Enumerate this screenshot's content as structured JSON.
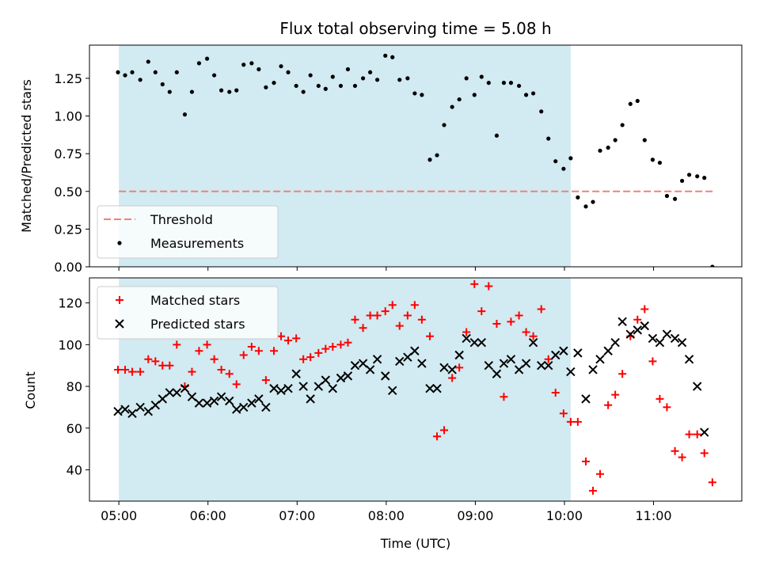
{
  "figure": {
    "title": "Flux total observing time = 5.08 h",
    "xlabel": "Time (UTC)"
  },
  "colors": {
    "shade": "#add8e6",
    "threshold": "#f08080",
    "measurement": "#000000",
    "matched": "#ff0000",
    "predicted": "#000000"
  },
  "chart_data": [
    {
      "type": "scatter",
      "ylabel": "Matched/Predicted stars",
      "xlim": [
        4.67,
        11.99
      ],
      "ylim": [
        0,
        1.47
      ],
      "x_unit": "hours UTC",
      "x_ticks": [
        5,
        6,
        7,
        8,
        9,
        10,
        11
      ],
      "x_tick_labels": [],
      "y_ticks": [
        0,
        0.25,
        0.5,
        0.75,
        1.0,
        1.25
      ],
      "y_tick_labels": [
        "0.00",
        "0.25",
        "0.50",
        "0.75",
        "1.00",
        "1.25"
      ],
      "shaded_interval": [
        5.0,
        10.07
      ],
      "threshold": {
        "name": "Threshold",
        "y": 0.5,
        "x_range": [
          5.0,
          11.67
        ],
        "style": "dashed"
      },
      "legend_position": "lower-left",
      "legend": [
        "Threshold",
        "Measurements"
      ],
      "series": [
        {
          "name": "Measurements",
          "marker": "dot",
          "x": [
            4.99,
            5.07,
            5.15,
            5.24,
            5.33,
            5.41,
            5.49,
            5.57,
            5.65,
            5.74,
            5.82,
            5.9,
            5.99,
            6.07,
            6.15,
            6.24,
            6.32,
            6.4,
            6.49,
            6.57,
            6.65,
            6.74,
            6.82,
            6.9,
            6.99,
            7.07,
            7.15,
            7.24,
            7.32,
            7.4,
            7.49,
            7.57,
            7.65,
            7.74,
            7.82,
            7.9,
            7.99,
            8.07,
            8.15,
            8.24,
            8.32,
            8.4,
            8.49,
            8.57,
            8.65,
            8.74,
            8.82,
            8.9,
            8.99,
            9.07,
            9.15,
            9.24,
            9.32,
            9.4,
            9.49,
            9.57,
            9.65,
            9.74,
            9.82,
            9.9,
            9.99,
            10.07,
            10.15,
            10.24,
            10.32,
            10.4,
            10.49,
            10.57,
            10.65,
            10.74,
            10.82,
            10.9,
            10.99,
            11.07,
            11.15,
            11.24,
            11.32,
            11.4,
            11.49,
            11.57,
            11.66
          ],
          "y": [
            1.29,
            1.27,
            1.29,
            1.24,
            1.36,
            1.29,
            1.21,
            1.16,
            1.29,
            1.01,
            1.16,
            1.35,
            1.38,
            1.27,
            1.17,
            1.16,
            1.17,
            1.34,
            1.35,
            1.31,
            1.19,
            1.22,
            1.33,
            1.29,
            1.2,
            1.16,
            1.27,
            1.2,
            1.18,
            1.26,
            1.2,
            1.31,
            1.2,
            1.25,
            1.29,
            1.24,
            1.4,
            1.39,
            1.24,
            1.25,
            1.15,
            1.14,
            0.71,
            0.74,
            0.94,
            1.06,
            1.11,
            1.25,
            1.14,
            1.26,
            1.22,
            0.87,
            1.22,
            1.22,
            1.2,
            1.14,
            1.15,
            1.03,
            0.85,
            0.7,
            0.65,
            0.72,
            0.46,
            0.4,
            0.43,
            0.77,
            0.79,
            0.84,
            0.94,
            1.08,
            1.1,
            0.84,
            0.71,
            0.69,
            0.47,
            0.45,
            0.57,
            0.61,
            0.6,
            0.59,
            0.0
          ]
        }
      ]
    },
    {
      "type": "scatter",
      "ylabel": "Count",
      "xlim": [
        4.67,
        11.99
      ],
      "ylim": [
        25,
        132
      ],
      "x_unit": "hours UTC",
      "x_ticks": [
        5,
        6,
        7,
        8,
        9,
        10,
        11
      ],
      "x_tick_labels": [
        "05:00",
        "06:00",
        "07:00",
        "08:00",
        "09:00",
        "10:00",
        "11:00"
      ],
      "y_ticks": [
        40,
        60,
        80,
        100,
        120
      ],
      "y_tick_labels": [
        "40",
        "60",
        "80",
        "100",
        "120"
      ],
      "shaded_interval": [
        5.0,
        10.07
      ],
      "legend_position": "upper-left",
      "legend": [
        "Matched stars",
        "Predicted stars"
      ],
      "series": [
        {
          "name": "Matched stars",
          "marker": "plus",
          "x": [
            4.99,
            5.07,
            5.15,
            5.24,
            5.33,
            5.41,
            5.49,
            5.57,
            5.65,
            5.74,
            5.82,
            5.9,
            5.99,
            6.07,
            6.15,
            6.24,
            6.32,
            6.4,
            6.49,
            6.57,
            6.65,
            6.74,
            6.82,
            6.9,
            6.99,
            7.07,
            7.15,
            7.24,
            7.32,
            7.4,
            7.49,
            7.57,
            7.65,
            7.74,
            7.82,
            7.9,
            7.99,
            8.07,
            8.15,
            8.24,
            8.32,
            8.4,
            8.49,
            8.57,
            8.65,
            8.74,
            8.82,
            8.9,
            8.99,
            9.07,
            9.15,
            9.24,
            9.32,
            9.4,
            9.49,
            9.57,
            9.65,
            9.74,
            9.82,
            9.9,
            9.99,
            10.07,
            10.15,
            10.24,
            10.32,
            10.4,
            10.49,
            10.57,
            10.65,
            10.74,
            10.82,
            10.9,
            10.99,
            11.07,
            11.15,
            11.24,
            11.32,
            11.4,
            11.49,
            11.57,
            11.66
          ],
          "y": [
            88,
            88,
            87,
            87,
            93,
            92,
            90,
            90,
            100,
            80,
            87,
            97,
            100,
            93,
            88,
            86,
            81,
            95,
            99,
            97,
            83,
            97,
            104,
            102,
            103,
            93,
            94,
            96,
            98,
            99,
            100,
            101,
            112,
            108,
            114,
            114,
            116,
            119,
            109,
            114,
            119,
            112,
            104,
            56,
            59,
            84,
            89,
            106,
            129,
            116,
            128,
            110,
            75,
            111,
            114,
            106,
            104,
            117,
            93,
            77,
            67,
            63,
            63,
            44,
            30,
            38,
            71,
            76,
            86,
            104,
            112,
            117,
            92,
            74,
            70,
            49,
            46,
            57,
            57,
            48,
            34
          ]
        },
        {
          "name": "Predicted stars",
          "marker": "x",
          "x": [
            4.99,
            5.07,
            5.15,
            5.24,
            5.33,
            5.41,
            5.49,
            5.57,
            5.65,
            5.74,
            5.82,
            5.9,
            5.99,
            6.07,
            6.15,
            6.24,
            6.32,
            6.4,
            6.49,
            6.57,
            6.65,
            6.74,
            6.82,
            6.9,
            6.99,
            7.07,
            7.15,
            7.24,
            7.32,
            7.4,
            7.49,
            7.57,
            7.65,
            7.74,
            7.82,
            7.9,
            7.99,
            8.07,
            8.15,
            8.24,
            8.32,
            8.4,
            8.49,
            8.57,
            8.65,
            8.74,
            8.82,
            8.9,
            8.99,
            9.07,
            9.15,
            9.24,
            9.32,
            9.4,
            9.49,
            9.57,
            9.65,
            9.74,
            9.82,
            9.9,
            9.99,
            10.07,
            10.15,
            10.24,
            10.32,
            10.4,
            10.49,
            10.57,
            10.65,
            10.74,
            10.82,
            10.9,
            10.99,
            11.07,
            11.15,
            11.24,
            11.32,
            11.4,
            11.49,
            11.57
          ],
          "y": [
            68,
            69,
            67,
            70,
            68,
            71,
            74,
            77,
            77,
            79,
            75,
            72,
            72,
            73,
            75,
            73,
            69,
            70,
            72,
            74,
            70,
            79,
            78,
            79,
            86,
            80,
            74,
            80,
            83,
            79,
            84,
            85,
            90,
            91,
            88,
            93,
            85,
            78,
            92,
            94,
            97,
            91,
            79,
            79,
            89,
            88,
            95,
            103,
            101,
            101,
            90,
            86,
            91,
            93,
            88,
            91,
            101,
            90,
            90,
            95,
            97,
            87,
            96,
            74,
            88,
            93,
            97,
            101,
            111,
            105,
            107,
            109,
            103,
            101,
            105,
            103,
            101,
            93,
            80,
            58
          ]
        }
      ]
    }
  ]
}
